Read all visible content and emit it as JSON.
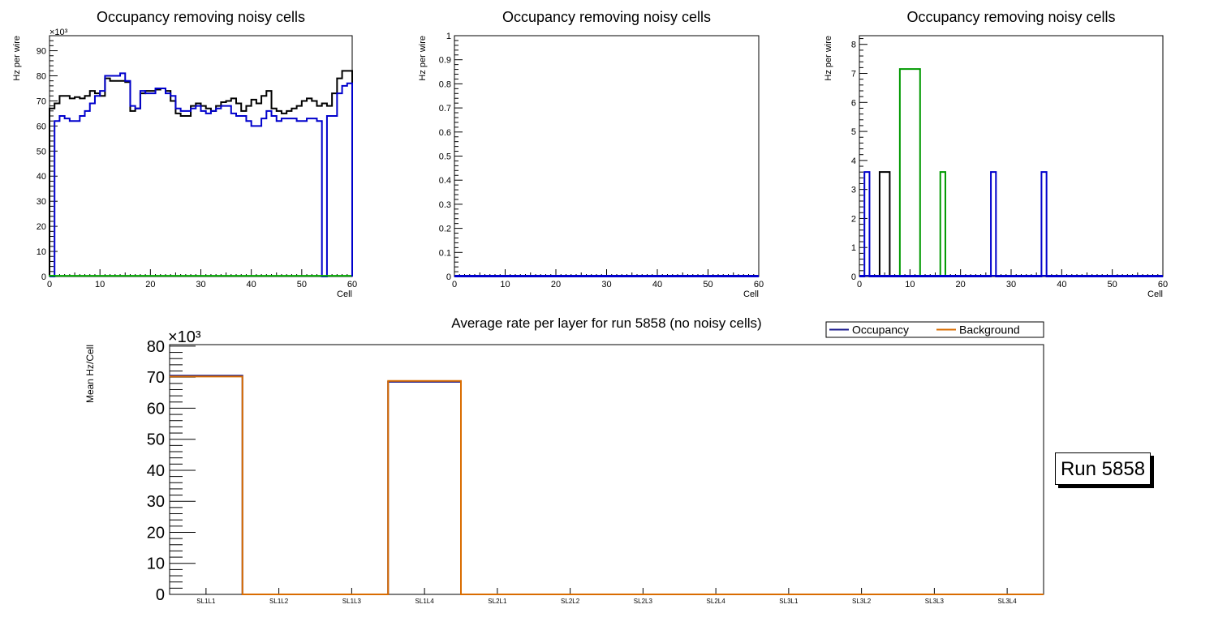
{
  "chart_data": [
    {
      "type": "line",
      "title": "Occupancy removing noisy cells",
      "xlabel": "Cell",
      "ylabel": "Hz per wire",
      "xlim": [
        0,
        60
      ],
      "ylim": [
        0,
        96
      ],
      "y_multiplier": "×10³",
      "xticks": [
        0,
        10,
        20,
        30,
        40,
        50,
        60
      ],
      "yticks": [
        0,
        10,
        20,
        30,
        40,
        50,
        60,
        70,
        80,
        90
      ],
      "series": [
        {
          "name": "black",
          "color": "#000000",
          "bin_start": 0,
          "bin_width": 1,
          "values": [
            67,
            69,
            72,
            72,
            71,
            71.5,
            71,
            72,
            74,
            73,
            72,
            79,
            78,
            78,
            78,
            77.5,
            66,
            67,
            73,
            74,
            74,
            74.5,
            75,
            74,
            70,
            65,
            64,
            64,
            68,
            69,
            68,
            67,
            66,
            68,
            69.5,
            70,
            71,
            69,
            66,
            68,
            70.5,
            69,
            72,
            74,
            67,
            66,
            65,
            66,
            67,
            68,
            70,
            71,
            70,
            68,
            69,
            68,
            73,
            79,
            82,
            82
          ]
        },
        {
          "name": "blue",
          "color": "#0000cc",
          "bin_start": 0,
          "bin_width": 1,
          "values": [
            0,
            62,
            64,
            63,
            62,
            62,
            64,
            66,
            69,
            72,
            74,
            80,
            80,
            80,
            81,
            78,
            68,
            67,
            74,
            73,
            73,
            75,
            75,
            73,
            72,
            67,
            66,
            66,
            67,
            68,
            66,
            65,
            66,
            67,
            68,
            68,
            65,
            64,
            64,
            62,
            60,
            60,
            63,
            66,
            64,
            62,
            63,
            63,
            63,
            62,
            62,
            63,
            63,
            62,
            0,
            64,
            64,
            73,
            76,
            77
          ]
        },
        {
          "name": "green",
          "color": "#00aa00",
          "bin_start": 0,
          "bin_width": 1,
          "values": [
            0.3
          ]
        }
      ]
    },
    {
      "type": "line",
      "title": "Occupancy removing noisy cells",
      "xlabel": "Cell",
      "ylabel": "Hz per wire",
      "xlim": [
        0,
        60
      ],
      "ylim": [
        0,
        1
      ],
      "xticks": [
        0,
        10,
        20,
        30,
        40,
        50,
        60
      ],
      "yticks": [
        0,
        0.1,
        0.2,
        0.3,
        0.4,
        0.5,
        0.6,
        0.7,
        0.8,
        0.9,
        1
      ],
      "series": [
        {
          "name": "blue",
          "color": "#0000cc",
          "bin_start": 0,
          "bin_width": 60,
          "values": [
            0
          ]
        }
      ]
    },
    {
      "type": "line",
      "title": "Occupancy removing noisy cells",
      "xlabel": "Cell",
      "ylabel": "Hz per wire",
      "xlim": [
        0,
        60
      ],
      "ylim": [
        0,
        8.3
      ],
      "xticks": [
        0,
        10,
        20,
        30,
        40,
        50,
        60
      ],
      "yticks": [
        0,
        1,
        2,
        3,
        4,
        5,
        6,
        7,
        8
      ],
      "series": [
        {
          "name": "black",
          "color": "#000000",
          "bin_start": 4,
          "bin_width": 2,
          "values": [
            3.6
          ]
        },
        {
          "name": "green",
          "color": "#009900",
          "bin_start": 8,
          "bin_width": 1,
          "values": [
            7.15,
            7.15,
            7.15,
            7.15,
            0,
            0,
            0,
            0,
            3.6
          ]
        },
        {
          "name": "blue",
          "color": "#0000cc",
          "bin_start": 0,
          "bin_width": 1,
          "values": [
            0,
            3.6,
            0,
            0,
            0,
            0,
            0,
            0,
            0,
            0,
            0,
            0,
            0,
            0,
            0,
            0,
            0,
            0,
            0,
            0,
            0,
            0,
            0,
            0,
            0,
            0,
            3.6,
            0,
            0,
            0,
            0,
            0,
            0,
            0,
            0,
            0,
            3.6,
            0,
            0,
            0,
            0,
            0,
            0,
            0,
            0,
            0,
            0,
            0,
            0,
            0,
            0,
            0,
            0,
            0,
            0,
            0,
            0,
            0,
            0,
            0
          ]
        }
      ]
    },
    {
      "type": "bar",
      "title": "Average rate per layer for run 5858 (no noisy cells)",
      "xlabel": "",
      "ylabel": "Mean Hz/Cell",
      "ylim": [
        0,
        80.5
      ],
      "y_multiplier": "×10³",
      "yticks": [
        0,
        10,
        20,
        30,
        40,
        50,
        60,
        70,
        80
      ],
      "categories": [
        "SL1L1",
        "SL1L2",
        "SL1L3",
        "SL1L4",
        "SL2L1",
        "SL2L2",
        "SL2L3",
        "SL2L4",
        "SL3L1",
        "SL3L2",
        "SL3L3",
        "SL3L4"
      ],
      "series": [
        {
          "name": "Occupancy",
          "color": "#1a1a8c",
          "values": [
            70.5,
            0,
            0,
            68.5,
            0,
            0,
            0,
            0,
            0,
            0,
            0,
            0
          ]
        },
        {
          "name": "Background",
          "color": "#d96c00",
          "values": [
            70.2,
            0,
            0,
            68.8,
            0,
            0,
            0,
            0,
            0,
            0,
            0,
            0
          ]
        }
      ],
      "legend": "top-right"
    }
  ],
  "run_label": "Run 5858"
}
